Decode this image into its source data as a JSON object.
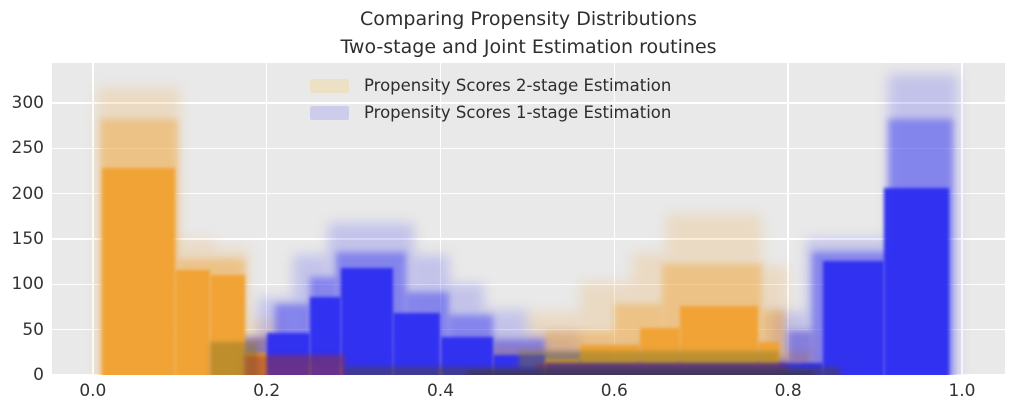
{
  "title": {
    "line1": "Comparing Propensity Distributions",
    "line2": "Two-stage and Joint Estimation routines"
  },
  "legend": {
    "entries": [
      {
        "label": "Propensity Scores 2-stage Estimation",
        "swatch": "#ece1c4"
      },
      {
        "label": "Propensity Scores 1-stage Estimation",
        "swatch": "#cdcdeb"
      }
    ]
  },
  "colors": {
    "figure_bg": "#ffffff",
    "plot_bg": "#e9e9e9",
    "grid": "#ffffff",
    "text": "#333333",
    "orange_series": "#f0a232",
    "blue_series": "#2e2ef0"
  },
  "chart_data": {
    "type": "bar",
    "subtype": "overlaid-bootstrap-histograms",
    "title": "Comparing Propensity Distributions\nTwo-stage and Joint Estimation routines",
    "xlabel": "",
    "ylabel": "",
    "xlim": [
      -0.047,
      1.0495
    ],
    "ylim": [
      0,
      344
    ],
    "grid": true,
    "legend_position": "upper center",
    "x_ticks": [
      0.0,
      0.2,
      0.4,
      0.6,
      0.8,
      1.0
    ],
    "x_tick_labels": [
      "0.0",
      "0.2",
      "0.4",
      "0.6",
      "0.8",
      "1.0"
    ],
    "y_ticks": [
      0,
      50,
      100,
      150,
      200,
      250,
      300
    ],
    "y_tick_labels": [
      "0",
      "50",
      "100",
      "150",
      "200",
      "250",
      "300"
    ],
    "series": [
      {
        "name": "Propensity Scores 2-stage Estimation",
        "color": "#f0a232",
        "layers": {
          "envelope": [
            [
              0.005,
              0.1,
              318
            ],
            [
              0.1,
              0.14,
              150
            ],
            [
              0.14,
              0.18,
              140
            ],
            [
              0.18,
              0.215,
              62
            ],
            [
              0.215,
              0.3,
              30
            ],
            [
              0.3,
              0.42,
              22
            ],
            [
              0.42,
              0.5,
              40
            ],
            [
              0.5,
              0.56,
              70
            ],
            [
              0.56,
              0.62,
              102
            ],
            [
              0.62,
              0.66,
              135
            ],
            [
              0.66,
              0.77,
              178
            ],
            [
              0.77,
              0.8,
              120
            ],
            [
              0.8,
              0.835,
              48
            ],
            [
              0.835,
              0.88,
              18
            ]
          ],
          "mid": [
            [
              0.008,
              0.098,
              282
            ],
            [
              0.098,
              0.175,
              128
            ],
            [
              0.175,
              0.205,
              42
            ],
            [
              0.205,
              0.32,
              20
            ],
            [
              0.32,
              0.46,
              13
            ],
            [
              0.46,
              0.52,
              30
            ],
            [
              0.52,
              0.6,
              48
            ],
            [
              0.6,
              0.655,
              78
            ],
            [
              0.655,
              0.77,
              122
            ],
            [
              0.77,
              0.795,
              72
            ],
            [
              0.795,
              0.825,
              26
            ],
            [
              0.825,
              0.86,
              9
            ]
          ],
          "core": [
            [
              0.01,
              0.095,
              228
            ],
            [
              0.095,
              0.135,
              116
            ],
            [
              0.135,
              0.175,
              110
            ],
            [
              0.175,
              0.2,
              24
            ],
            [
              0.2,
              0.34,
              10
            ],
            [
              0.34,
              0.48,
              7
            ],
            [
              0.48,
              0.56,
              18
            ],
            [
              0.56,
              0.63,
              33
            ],
            [
              0.63,
              0.675,
              52
            ],
            [
              0.675,
              0.765,
              76
            ],
            [
              0.765,
              0.79,
              36
            ],
            [
              0.79,
              0.815,
              12
            ]
          ]
        }
      },
      {
        "name": "Propensity Scores 1-stage Estimation",
        "color": "#2e2ef0",
        "layers": {
          "envelope": [
            [
              0.14,
              0.19,
              32
            ],
            [
              0.19,
              0.23,
              85
            ],
            [
              0.23,
              0.27,
              132
            ],
            [
              0.27,
              0.37,
              168
            ],
            [
              0.37,
              0.41,
              132
            ],
            [
              0.41,
              0.45,
              100
            ],
            [
              0.45,
              0.5,
              72
            ],
            [
              0.5,
              0.56,
              45
            ],
            [
              0.56,
              0.78,
              30
            ],
            [
              0.78,
              0.82,
              70
            ],
            [
              0.82,
              0.915,
              150
            ],
            [
              0.915,
              0.995,
              332
            ]
          ],
          "mid": [
            [
              0.17,
              0.21,
              42
            ],
            [
              0.21,
              0.25,
              78
            ],
            [
              0.25,
              0.28,
              108
            ],
            [
              0.28,
              0.36,
              136
            ],
            [
              0.36,
              0.41,
              92
            ],
            [
              0.41,
              0.46,
              66
            ],
            [
              0.46,
              0.52,
              40
            ],
            [
              0.52,
              0.6,
              24
            ],
            [
              0.6,
              0.8,
              18
            ],
            [
              0.8,
              0.828,
              48
            ],
            [
              0.828,
              0.915,
              136
            ],
            [
              0.915,
              0.99,
              282
            ]
          ],
          "core": [
            [
              0.2,
              0.25,
              46
            ],
            [
              0.25,
              0.285,
              86
            ],
            [
              0.285,
              0.345,
              118
            ],
            [
              0.345,
              0.4,
              68
            ],
            [
              0.4,
              0.46,
              42
            ],
            [
              0.46,
              0.52,
              22
            ],
            [
              0.52,
              0.84,
              13
            ],
            [
              0.84,
              0.91,
              126
            ],
            [
              0.91,
              0.985,
              206
            ]
          ]
        }
      }
    ],
    "overlap_bands": [
      {
        "x0": 0.135,
        "x1": 0.19,
        "y0": 0,
        "y1": 36,
        "color": "rgba(140,120,36,0.50)"
      },
      {
        "x0": 0.175,
        "x1": 0.29,
        "y0": 0,
        "y1": 22,
        "color": "rgba(150,50,45,0.50)"
      },
      {
        "x0": 0.49,
        "x1": 0.79,
        "y0": 8,
        "y1": 26,
        "color": "rgba(128,122,44,0.45)"
      },
      {
        "x0": 0.51,
        "x1": 0.8,
        "y0": 2,
        "y1": 12,
        "color": "rgba(140,46,56,0.50)"
      },
      {
        "x0": 0.29,
        "x1": 0.86,
        "y0": 0,
        "y1": 9,
        "color": "rgba(70,64,92,0.60)"
      },
      {
        "x0": 0.43,
        "x1": 0.83,
        "y0": 0,
        "y1": 4,
        "color": "rgba(56,52,64,0.60)"
      }
    ]
  }
}
